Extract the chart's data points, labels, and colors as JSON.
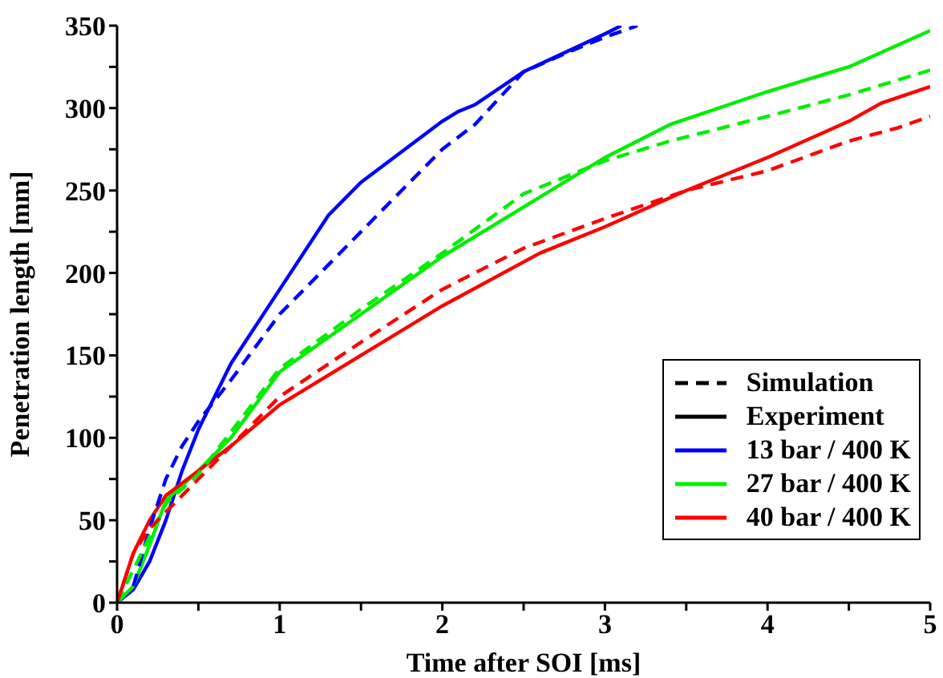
{
  "chart_data": {
    "type": "line",
    "xlabel": "Time after SOI [ms]",
    "ylabel": "Penetration length [mm]",
    "xlim": [
      0,
      5
    ],
    "ylim": [
      0,
      350
    ],
    "xticks": [
      0,
      {
        "value": 0.5,
        "label": null
      },
      1,
      {
        "value": 1.5,
        "label": null
      },
      2,
      {
        "value": 2.5,
        "label": null
      },
      3,
      {
        "value": 3.5,
        "label": null
      },
      4,
      {
        "value": 4.5,
        "label": null
      },
      5
    ],
    "yticks": [
      0,
      {
        "value": 25,
        "label": null
      },
      50,
      {
        "value": 75,
        "label": null
      },
      100,
      {
        "value": 125,
        "label": null
      },
      150,
      {
        "value": 175,
        "label": null
      },
      200,
      {
        "value": 225,
        "label": null
      },
      250,
      {
        "value": 275,
        "label": null
      },
      300,
      {
        "value": 325,
        "label": null
      },
      350
    ],
    "grid": false,
    "legend": "bottom right",
    "marker": "none",
    "series": [
      {
        "name": "Simulation",
        "color": "#000000",
        "line_style": "dashed"
      },
      {
        "name": "Experiment",
        "color": "#000000",
        "line_style": "solid"
      },
      {
        "name": "13 bar / 400 K",
        "color": "#0000ff",
        "line_style": "solid",
        "x": [
          0,
          0.1,
          0.2,
          0.3,
          0.4,
          0.5,
          0.7,
          1.0,
          1.3,
          1.5,
          2.0,
          2.1,
          2.2,
          2.5,
          3.0,
          3.1
        ],
        "values": [
          0,
          8,
          25,
          50,
          80,
          105,
          145,
          190,
          235,
          255,
          292,
          298,
          302,
          322,
          345,
          350
        ]
      },
      {
        "name": "27 bar / 400 K",
        "color": "#00ee00",
        "line_style": "solid",
        "x": [
          0,
          0.1,
          0.2,
          0.3,
          0.5,
          0.7,
          1.0,
          1.5,
          2.0,
          2.5,
          3.0,
          3.4,
          4.0,
          4.5,
          5.0
        ],
        "values": [
          0,
          10,
          35,
          62,
          80,
          100,
          140,
          175,
          210,
          240,
          270,
          290,
          310,
          325,
          347
        ]
      },
      {
        "name": "40 bar / 400 K",
        "color": "#ff0000",
        "line_style": "solid",
        "x": [
          0,
          0.1,
          0.2,
          0.3,
          0.5,
          0.7,
          1.0,
          1.5,
          2.0,
          2.6,
          3.0,
          3.5,
          4.0,
          4.5,
          4.7,
          5.0
        ],
        "values": [
          0,
          30,
          50,
          65,
          80,
          95,
          120,
          150,
          180,
          212,
          228,
          250,
          270,
          292,
          303,
          313
        ]
      },
      {
        "color": "#0000ff",
        "line_style": "dashed",
        "x": [
          0.1,
          0.2,
          0.3,
          0.4,
          0.5,
          0.7,
          1.0,
          1.5,
          1.8,
          2.0,
          2.2,
          2.5,
          2.8,
          3.0,
          3.2
        ],
        "values": [
          10,
          45,
          75,
          95,
          110,
          135,
          175,
          225,
          255,
          275,
          290,
          322,
          335,
          343,
          350
        ]
      },
      {
        "color": "#00ee00",
        "line_style": "dashed",
        "x": [
          0,
          0.2,
          0.3,
          0.5,
          1.0,
          1.5,
          2.0,
          2.5,
          3.0,
          3.4,
          4.0,
          4.5,
          5.0
        ],
        "values": [
          0,
          40,
          60,
          78,
          142,
          178,
          212,
          248,
          268,
          280,
          295,
          308,
          323
        ]
      },
      {
        "color": "#ff0000",
        "line_style": "dashed",
        "x": [
          0,
          0.1,
          0.2,
          0.3,
          0.5,
          1.0,
          1.5,
          2.0,
          2.5,
          3.0,
          3.5,
          4.0,
          4.5,
          4.8,
          5.0
        ],
        "values": [
          0,
          30,
          45,
          55,
          75,
          125,
          158,
          190,
          215,
          233,
          250,
          262,
          280,
          288,
          295
        ]
      }
    ]
  }
}
